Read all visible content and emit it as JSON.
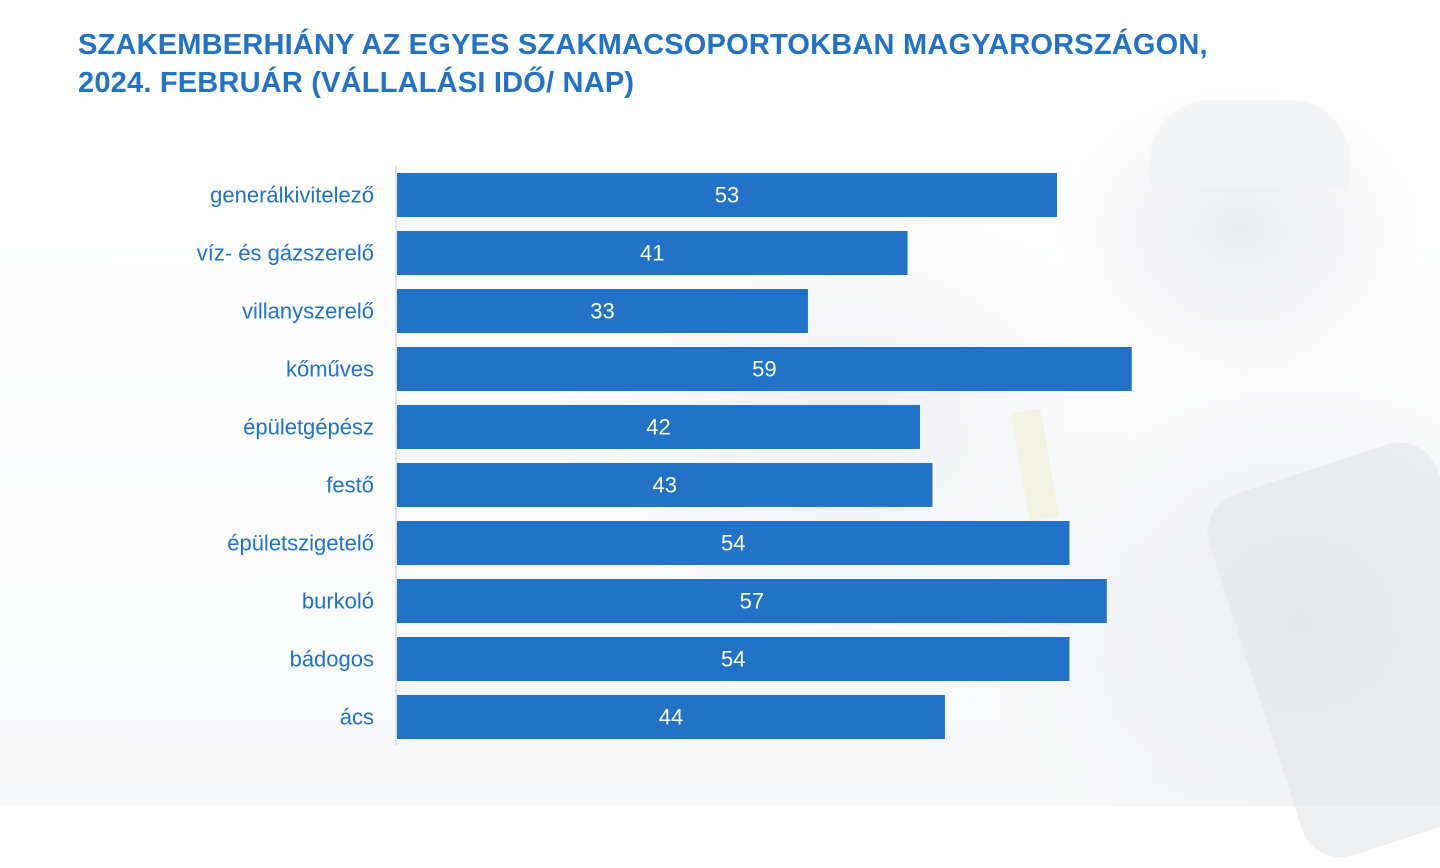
{
  "title": {
    "line1": "SZAKEMBERHIÁNY AZ EGYES SZAKMACSOPORTOKBAN MAGYARORSZÁGON,",
    "line2": "2024. FEBRUÁR (VÁLLALÁSI IDŐ/ NAP)"
  },
  "colors": {
    "bar": "#2272c8",
    "title": "#2272c8",
    "category_label": "#2272c8",
    "value_label": "#ffffff",
    "axis": "#c8cbd0"
  },
  "chart_data": {
    "type": "bar",
    "orientation": "horizontal",
    "title": "SZAKEMBERHIÁNY AZ EGYES SZAKMACSOPORTOKBAN MAGYARORSZÁGON, 2024. FEBRUÁR (VÁLLALÁSI IDŐ/ NAP)",
    "categories": [
      "generálkivitelező",
      "víz- és gázszerelő",
      "villanyszerelő",
      "kőműves",
      "épületgépész",
      "festő",
      "épületszigetelő",
      "burkoló",
      "bádogos",
      "ács"
    ],
    "values": [
      53,
      41,
      33,
      59,
      42,
      43,
      54,
      57,
      54,
      44
    ],
    "data_labels": true,
    "xlim": [
      0,
      65
    ],
    "grid": false,
    "legend": "none"
  }
}
